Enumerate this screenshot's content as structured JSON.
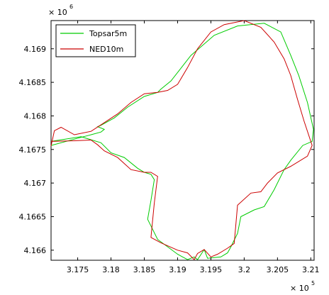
{
  "chart_data": {
    "type": "line",
    "title": "",
    "xlabel": "",
    "ylabel": "",
    "x_multiplier": "× 10",
    "x_multiplier_exponent": "5",
    "y_multiplier": "× 10",
    "y_multiplier_exponent": "6",
    "xlim": [
      317100,
      321050
    ],
    "ylim": [
      4165850,
      4169420
    ],
    "x_ticks": [
      317500,
      318000,
      318500,
      319000,
      319500,
      320000,
      320500,
      321000
    ],
    "x_tick_labels": [
      "3.175",
      "3.18",
      "3.185",
      "3.19",
      "3.195",
      "3.2",
      "3.205",
      "3.21"
    ],
    "y_ticks": [
      4166000,
      4166500,
      4167000,
      4167500,
      4168000,
      4168500,
      4169000
    ],
    "y_tick_labels": [
      "4.166",
      "4.1665",
      "4.167",
      "4.1675",
      "4.168",
      "4.1685",
      "4.169"
    ],
    "grid": false,
    "legend_position": "top-left",
    "series": [
      {
        "name": "Topsar5m",
        "color": "#00cc00",
        "x": [
          317100,
          317550,
          317700,
          317850,
          317900,
          317800,
          317850,
          318050,
          318250,
          318500,
          318700,
          318750,
          318900,
          319200,
          319550,
          319900,
          320300,
          320550,
          320700,
          320820,
          320950,
          321040,
          321020,
          320880,
          320700,
          320600,
          320450,
          320300,
          320150,
          319950,
          319900,
          319800,
          319750,
          319650,
          319450,
          319400,
          319300,
          319250,
          319150,
          319000,
          318700,
          318550,
          318600,
          318650,
          318600,
          318500,
          318400,
          318200,
          318000,
          317850,
          317550,
          317100
        ],
        "y": [
          4167560,
          4167680,
          4167720,
          4167760,
          4167800,
          4167840,
          4167860,
          4167970,
          4168130,
          4168290,
          4168350,
          4168400,
          4168520,
          4168900,
          4169200,
          4169340,
          4169380,
          4169250,
          4168900,
          4168600,
          4168200,
          4167800,
          4167620,
          4167560,
          4167340,
          4167200,
          4166900,
          4166650,
          4166600,
          4166500,
          4166250,
          4166050,
          4165960,
          4165900,
          4165880,
          4166010,
          4165860,
          4165900,
          4165860,
          4165940,
          4166160,
          4166460,
          4166740,
          4167050,
          4167130,
          4167160,
          4167220,
          4167380,
          4167450,
          4167600,
          4167690,
          4167620
        ]
      },
      {
        "name": "NED10m",
        "color": "#cc0000",
        "x": [
          317100,
          317150,
          317250,
          317450,
          317700,
          317900,
          318100,
          318300,
          318500,
          318700,
          318850,
          319000,
          319150,
          319300,
          319500,
          319700,
          320000,
          320250,
          320450,
          320600,
          320700,
          320800,
          320900,
          321020,
          320950,
          320700,
          320500,
          320350,
          320250,
          320100,
          319900,
          319850,
          319750,
          319600,
          319500,
          319400,
          319300,
          319250,
          319150,
          319000,
          318750,
          318600,
          318650,
          318700,
          318600,
          318500,
          318300,
          318100,
          317900,
          317800,
          317700,
          317450,
          317100
        ],
        "y": [
          4167550,
          4167780,
          4167830,
          4167720,
          4167770,
          4167900,
          4168030,
          4168200,
          4168330,
          4168350,
          4168380,
          4168470,
          4168720,
          4169000,
          4169250,
          4169360,
          4169420,
          4169320,
          4169100,
          4168850,
          4168600,
          4168250,
          4167920,
          4167560,
          4167400,
          4167250,
          4167150,
          4167000,
          4166870,
          4166850,
          4166670,
          4166100,
          4166030,
          4165940,
          4165900,
          4166010,
          4165950,
          4165860,
          4165960,
          4166000,
          4166110,
          4166190,
          4166700,
          4167100,
          4167160,
          4167160,
          4167200,
          4167380,
          4167480,
          4167570,
          4167640,
          4167630,
          4167620
        ]
      }
    ]
  }
}
